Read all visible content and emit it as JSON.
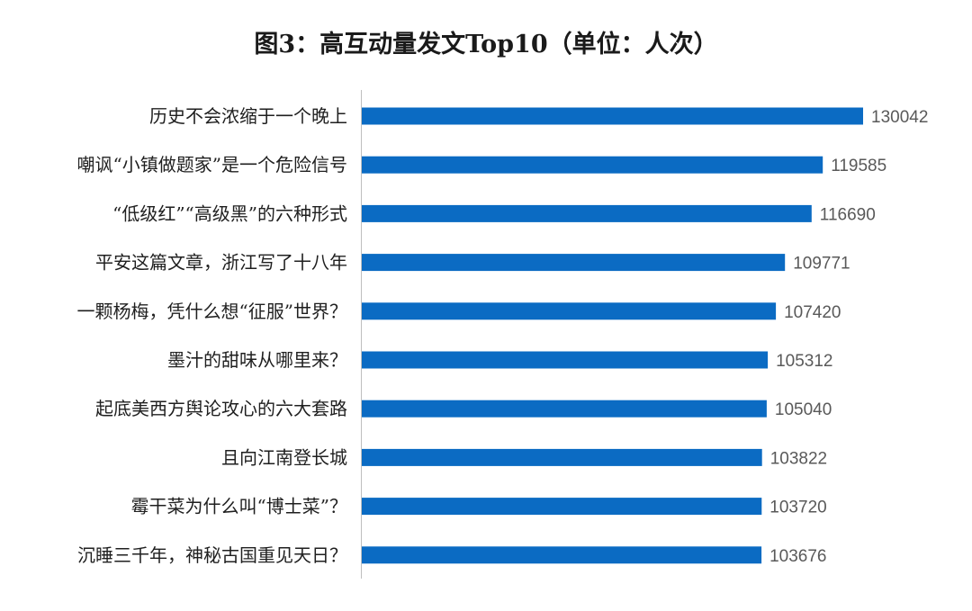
{
  "chart_data": {
    "type": "bar",
    "orientation": "horizontal",
    "title": "图3：高互动量发文Top10（单位：人次）",
    "categories": [
      "历史不会浓缩于一个晚上",
      "嘲讽“小镇做题家”是一个危险信号",
      "“低级红”“高级黑”的六种形式",
      "平安这篇文章，浙江写了十八年",
      "一颗杨梅，凭什么想“征服”世界？",
      "墨汁的甜味从哪里来？",
      "起底美西方舆论攻心的六大套路",
      "且向江南登长城",
      "霉干菜为什么叫“博士菜”？",
      "沉睡三千年，神秘古国重见天日？"
    ],
    "values": [
      130042,
      119585,
      116690,
      109771,
      107420,
      105312,
      105040,
      103822,
      103720,
      103676
    ],
    "xlim": [
      0,
      130042
    ],
    "grid": false,
    "legend": "none",
    "data_labels": true,
    "bar_color": "#0B6BC3"
  }
}
